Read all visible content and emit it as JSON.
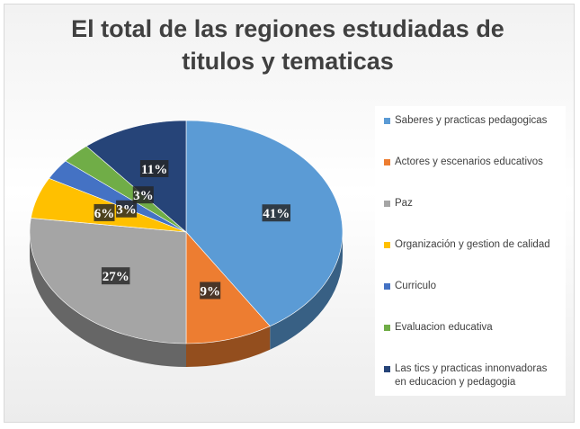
{
  "chart_data": {
    "type": "pie",
    "title": "El total de las regiones estudiadas de\ntitulos y tematicas",
    "slices": [
      {
        "name": "Saberes y practicas pedagogicas",
        "value": 41,
        "label": "41%",
        "color": "#5b9bd5"
      },
      {
        "name": "Actores y escenarios educativos",
        "value": 9,
        "label": "9%",
        "color": "#ed7d31"
      },
      {
        "name": "Paz",
        "value": 27,
        "label": "27%",
        "color": "#a5a5a5"
      },
      {
        "name": "Organización y gestion de calidad",
        "value": 6,
        "label": "6%",
        "color": "#ffc000"
      },
      {
        "name": "Curriculo",
        "value": 3,
        "label": "3%",
        "color": "#4472c4"
      },
      {
        "name": "Evaluacion educativa",
        "value": 3,
        "label": "3%",
        "color": "#70ad47"
      },
      {
        "name": "Las tics y practicas innonvadoras en educacion y pedagogia",
        "value": 11,
        "label": "11%",
        "color": "#264478"
      }
    ],
    "legend_position": "right"
  }
}
